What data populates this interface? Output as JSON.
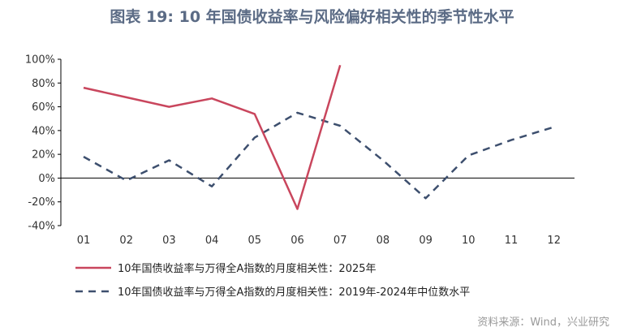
{
  "title": "图表 19: 10 年国债收益率与风险偏好相关性的季节性水平",
  "source": "资料来源：Wind，兴业研究",
  "chart_data": {
    "type": "line",
    "categories": [
      "01",
      "02",
      "03",
      "04",
      "05",
      "06",
      "07",
      "08",
      "09",
      "10",
      "11",
      "12"
    ],
    "ylim": [
      -40,
      100
    ],
    "yticks": [
      -40,
      -20,
      0,
      20,
      40,
      60,
      80,
      100
    ],
    "ytick_labels": [
      "-40%",
      "-20%",
      "0%",
      "20%",
      "40%",
      "60%",
      "80%",
      "100%"
    ],
    "legend_position": "bottom",
    "grid": false,
    "series": [
      {
        "name": "10年国债收益率与万得全A指数的月度相关性：2025年",
        "color": "#c9465d",
        "style": "solid",
        "values": [
          76,
          68,
          60,
          67,
          54,
          -26,
          95,
          null,
          null,
          null,
          null,
          null
        ]
      },
      {
        "name": "10年国债收益率与万得全A指数的月度相关性：2019年-2024年中位数水平",
        "color": "#3d4f6e",
        "style": "dashed",
        "values": [
          18,
          -2,
          15,
          -7,
          34,
          55,
          44,
          15,
          -17,
          19,
          32,
          43
        ]
      }
    ]
  }
}
